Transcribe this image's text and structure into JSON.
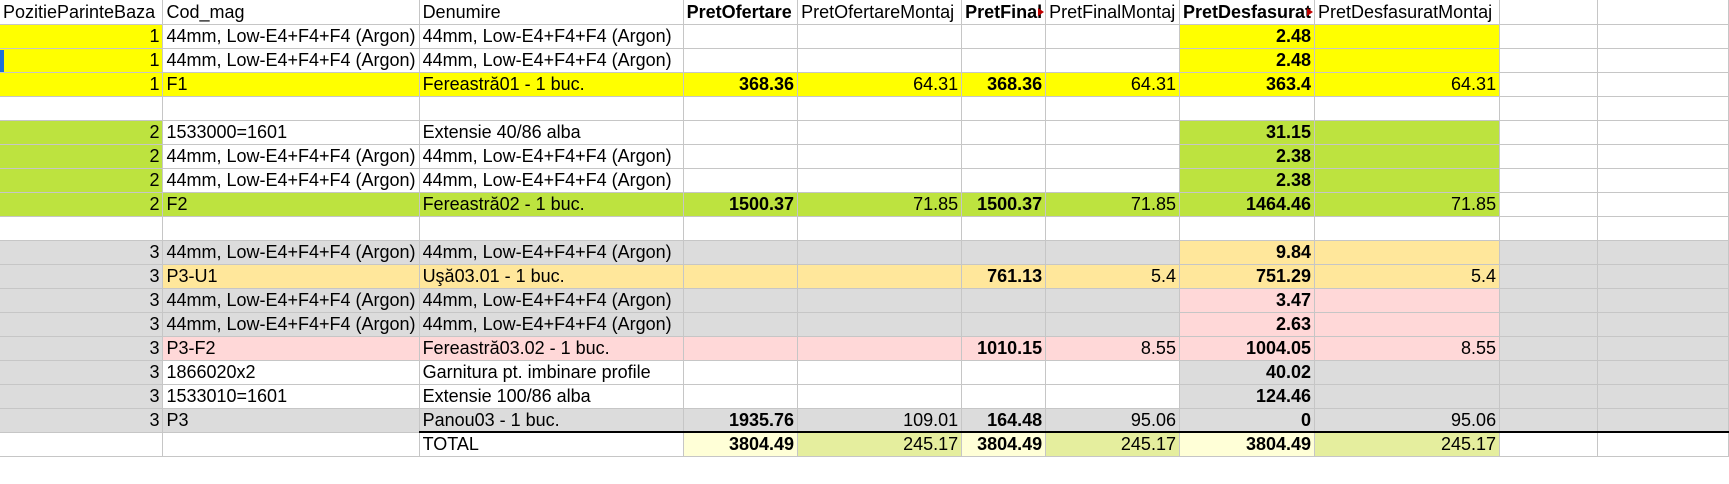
{
  "colors": {
    "yellow": "#ffff00",
    "green": "#bde33f",
    "grey": "#dcdcdc",
    "light_orange": "#ffe79b",
    "light_pink": "#ffd8d8",
    "total_pale": "#ffffd7",
    "total_khaki": "#e5ee9e",
    "white": "#ffffff"
  },
  "header": [
    "PozitieParinteBaza",
    "Cod_mag",
    "Denumire",
    "PretOfertare",
    "PretOfertareMontaj",
    "PretFinal",
    "PretFinalMontaj",
    "PretDesfasurat",
    "PretDesfasuratMontaj",
    "",
    ""
  ],
  "rows": [
    {
      "bg": "yellow",
      "cells": [
        "1",
        "44mm, Low-E4+F4+F4 (Argon)",
        "44mm, Low-E4+F4+F4 (Argon)",
        "",
        "",
        "",
        "",
        "2.48",
        "",
        "",
        ""
      ]
    },
    {
      "bg": "yellow",
      "cells": [
        "1",
        "44mm, Low-E4+F4+F4 (Argon)",
        "44mm, Low-E4+F4+F4 (Argon)",
        "",
        "",
        "",
        "",
        "2.48",
        "",
        "",
        ""
      ]
    },
    {
      "bg": "yellow",
      "cells": [
        "1",
        "F1",
        "Fereastră01 - 1 buc.",
        "368.36",
        "64.31",
        "368.36",
        "64.31",
        "363.4",
        "64.31",
        "",
        ""
      ]
    },
    {
      "bg": "white",
      "cells": [
        "",
        "",
        "",
        "",
        "",
        "",
        "",
        "",
        "",
        "",
        ""
      ]
    },
    {
      "bg": "green",
      "cells": [
        "2",
        "1533000=1601",
        "Extensie 40/86 alba",
        "",
        "",
        "",
        "",
        "31.15",
        "",
        "",
        ""
      ]
    },
    {
      "bg": "green",
      "cells": [
        "2",
        "44mm, Low-E4+F4+F4 (Argon)",
        "44mm, Low-E4+F4+F4 (Argon)",
        "",
        "",
        "",
        "",
        "2.38",
        "",
        "",
        ""
      ]
    },
    {
      "bg": "green",
      "cells": [
        "2",
        "44mm, Low-E4+F4+F4 (Argon)",
        "44mm, Low-E4+F4+F4 (Argon)",
        "",
        "",
        "",
        "",
        "2.38",
        "",
        "",
        ""
      ]
    },
    {
      "bg": "green",
      "cells": [
        "2",
        "F2",
        "Fereastră02 - 1 buc.",
        "1500.37",
        "71.85",
        "1500.37",
        "71.85",
        "1464.46",
        "71.85",
        "",
        ""
      ]
    },
    {
      "bg": "white",
      "cells": [
        "",
        "",
        "",
        "",
        "",
        "",
        "",
        "",
        "",
        "",
        ""
      ]
    },
    {
      "bg": "grey",
      "cells": [
        "3",
        "44mm, Low-E4+F4+F4 (Argon)",
        "44mm, Low-E4+F4+F4 (Argon)",
        "",
        "",
        "",
        "",
        "9.84",
        "",
        "",
        ""
      ]
    },
    {
      "bg": "grey",
      "cells": [
        "3",
        "P3-U1",
        "Uşă03.01 - 1 buc.",
        "",
        "",
        "761.13",
        "5.4",
        "751.29",
        "5.4",
        "",
        ""
      ]
    },
    {
      "bg": "grey",
      "cells": [
        "3",
        "44mm, Low-E4+F4+F4 (Argon)",
        "44mm, Low-E4+F4+F4 (Argon)",
        "",
        "",
        "",
        "",
        "3.47",
        "",
        "",
        ""
      ]
    },
    {
      "bg": "grey",
      "cells": [
        "3",
        "44mm, Low-E4+F4+F4 (Argon)",
        "44mm, Low-E4+F4+F4 (Argon)",
        "",
        "",
        "",
        "",
        "2.63",
        "",
        "",
        ""
      ]
    },
    {
      "bg": "grey",
      "cells": [
        "3",
        "P3-F2",
        "Fereastră03.02 - 1 buc.",
        "",
        "",
        "1010.15",
        "8.55",
        "1004.05",
        "8.55",
        "",
        ""
      ]
    },
    {
      "bg": "grey",
      "cells": [
        "3",
        "1866020x2",
        "Garnitura pt. imbinare profile",
        "",
        "",
        "",
        "",
        "40.02",
        "",
        "",
        ""
      ]
    },
    {
      "bg": "grey",
      "cells": [
        "3",
        "1533010=1601",
        "Extensie 100/86 alba",
        "",
        "",
        "",
        "",
        "124.46",
        "",
        "",
        ""
      ]
    },
    {
      "bg": "grey",
      "cells": [
        "3",
        "P3",
        "Panou03 - 1 buc.",
        "1935.76",
        "109.01",
        "164.48",
        "95.06",
        "0",
        "95.06",
        "",
        ""
      ]
    },
    {
      "bg": "white",
      "cells": [
        "",
        "",
        "TOTAL",
        "3804.49",
        "245.17",
        "3804.49",
        "245.17",
        "3804.49",
        "245.17",
        "",
        ""
      ]
    }
  ]
}
